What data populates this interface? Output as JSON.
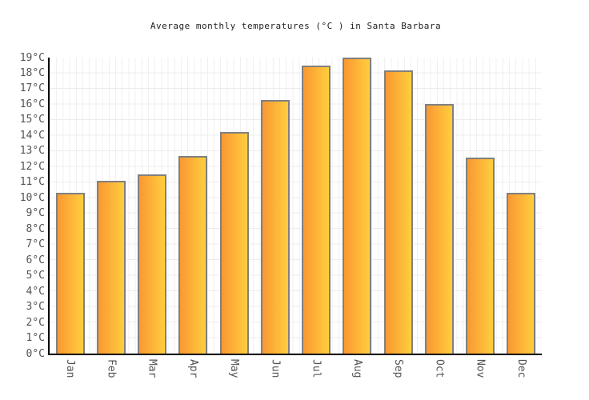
{
  "title": "Average monthly temperatures (°C ) in Santa Barbara",
  "chart_data": {
    "type": "bar",
    "title": "Average monthly temperatures (°C ) in Santa Barbara",
    "categories": [
      "Jan",
      "Feb",
      "Mar",
      "Apr",
      "May",
      "Jun",
      "Jul",
      "Aug",
      "Sep",
      "Oct",
      "Nov",
      "Dec"
    ],
    "values": [
      10.3,
      11.1,
      11.5,
      12.7,
      14.2,
      16.3,
      18.5,
      19.0,
      18.2,
      16.0,
      12.6,
      10.3
    ],
    "xlabel": "",
    "ylabel": "",
    "ylim": [
      0,
      19
    ],
    "y_ticks": [
      "0°C",
      "1°C",
      "2°C",
      "3°C",
      "4°C",
      "5°C",
      "6°C",
      "7°C",
      "8°C",
      "9°C",
      "10°C",
      "11°C",
      "12°C",
      "13°C",
      "14°C",
      "15°C",
      "16°C",
      "17°C",
      "18°C",
      "19°C"
    ],
    "grid": true,
    "legend": "none",
    "colors": {
      "bar_gradient_left": "#FA9832",
      "bar_gradient_right": "#FFCE3E",
      "bar_border": "#808080",
      "axis": "#000000",
      "gridline": "#ececec",
      "tick_text": "#545454",
      "title_text": "#222222",
      "background": "#ffffff"
    }
  }
}
